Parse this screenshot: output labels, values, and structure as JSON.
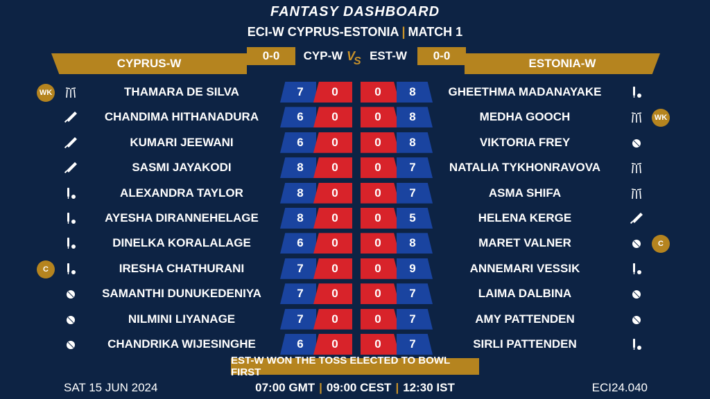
{
  "header": {
    "title": "FANTASY DASHBOARD",
    "tournament": "ECI-W CYPRUS-ESTONIA",
    "match": "MATCH 1"
  },
  "teams": {
    "left": {
      "name": "CYPRUS-W",
      "abbr": "CYP-W",
      "score": "0-0"
    },
    "right": {
      "name": "ESTONIA-W",
      "abbr": "EST-W",
      "score": "0-0"
    },
    "vs_label": "VS"
  },
  "left_players": [
    {
      "name": "THAMARA DE SILVA",
      "credit": "7",
      "points": "0",
      "role": "wk",
      "badge": "WK"
    },
    {
      "name": "CHANDIMA HITHANADURA",
      "credit": "6",
      "points": "0",
      "role": "bat",
      "badge": ""
    },
    {
      "name": "KUMARI JEEWANI",
      "credit": "6",
      "points": "0",
      "role": "bat",
      "badge": ""
    },
    {
      "name": "SASMI JAYAKODI",
      "credit": "8",
      "points": "0",
      "role": "bat",
      "badge": ""
    },
    {
      "name": "ALEXANDRA TAYLOR",
      "credit": "8",
      "points": "0",
      "role": "ar",
      "badge": ""
    },
    {
      "name": "AYESHA DIRANNEHELAGE",
      "credit": "8",
      "points": "0",
      "role": "ar",
      "badge": ""
    },
    {
      "name": "DINELKA KORALALAGE",
      "credit": "6",
      "points": "0",
      "role": "ar",
      "badge": ""
    },
    {
      "name": "IRESHA CHATHURANI",
      "credit": "7",
      "points": "0",
      "role": "ar",
      "badge": "C"
    },
    {
      "name": "SAMANTHI DUNUKEDENIYA",
      "credit": "7",
      "points": "0",
      "role": "bowl",
      "badge": ""
    },
    {
      "name": "NILMINI LIYANAGE",
      "credit": "7",
      "points": "0",
      "role": "bowl",
      "badge": ""
    },
    {
      "name": "CHANDRIKA WIJESINGHE",
      "credit": "6",
      "points": "0",
      "role": "bowl",
      "badge": ""
    }
  ],
  "right_players": [
    {
      "name": "GHEETHMA MADANAYAKE",
      "credit": "8",
      "points": "0",
      "role": "ar",
      "badge": ""
    },
    {
      "name": "MEDHA GOOCH",
      "credit": "8",
      "points": "0",
      "role": "wk",
      "badge": "WK"
    },
    {
      "name": "VIKTORIA FREY",
      "credit": "8",
      "points": "0",
      "role": "bowl",
      "badge": ""
    },
    {
      "name": "NATALIA TYKHONRAVOVA",
      "credit": "7",
      "points": "0",
      "role": "wk",
      "badge": ""
    },
    {
      "name": "ASMA SHIFA",
      "credit": "7",
      "points": "0",
      "role": "wk",
      "badge": ""
    },
    {
      "name": "HELENA KERGE",
      "credit": "5",
      "points": "0",
      "role": "bat",
      "badge": ""
    },
    {
      "name": "MARET VALNER",
      "credit": "8",
      "points": "0",
      "role": "bowl",
      "badge": "C"
    },
    {
      "name": "ANNEMARI VESSIK",
      "credit": "9",
      "points": "0",
      "role": "ar",
      "badge": ""
    },
    {
      "name": "LAIMA DALBINA",
      "credit": "7",
      "points": "0",
      "role": "bowl",
      "badge": ""
    },
    {
      "name": "AMY PATTENDEN",
      "credit": "7",
      "points": "0",
      "role": "bowl",
      "badge": ""
    },
    {
      "name": "SIRLI PATTENDEN",
      "credit": "7",
      "points": "0",
      "role": "ar",
      "badge": ""
    }
  ],
  "role_icons": {
    "wk": "wicket-stumps-icon",
    "bat": "cricket-bat-icon",
    "ar": "bat-and-ball-icon",
    "bowl": "cricket-ball-icon"
  },
  "toss": "EST-W WON THE TOSS ELECTED TO BOWL FIRST",
  "footer": {
    "date": "SAT 15 JUN 2024",
    "times": [
      "07:00 GMT",
      "09:00 CEST",
      "12:30 IST"
    ],
    "code": "ECI24.040"
  },
  "colors": {
    "background": "#0d2344",
    "gold": "#b5841f",
    "blue": "#1a44a0",
    "red": "#d8232a"
  }
}
